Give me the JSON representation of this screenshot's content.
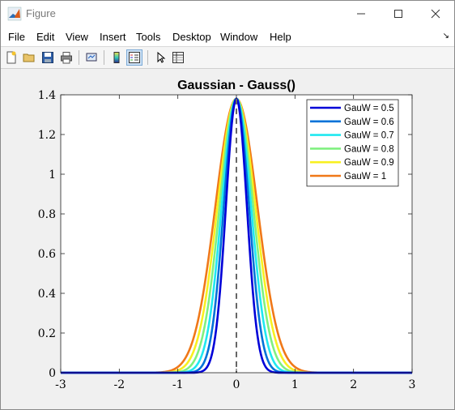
{
  "window": {
    "title": "Figure"
  },
  "menu": [
    "File",
    "Edit",
    "View",
    "Insert",
    "Tools",
    "Desktop",
    "Window",
    "Help"
  ],
  "chart_data": {
    "type": "line",
    "title": "Gaussian - Gauss()",
    "xlim": [
      -3,
      3
    ],
    "ylim": [
      0,
      1.4
    ],
    "xticks": [
      "-3",
      "-2",
      "-1",
      "0",
      "1",
      "2",
      "3"
    ],
    "yticks": [
      "0",
      "0.2",
      "0.4",
      "0.6",
      "0.8",
      "1",
      "1.2",
      "1.4"
    ],
    "peak": 1.38,
    "legend_position": "top-right",
    "series": [
      {
        "name": "GauW = 0.5",
        "width": 0.5,
        "color": "#0000d8"
      },
      {
        "name": "GauW = 0.6",
        "width": 0.6,
        "color": "#0072d8"
      },
      {
        "name": "GauW = 0.7",
        "width": 0.7,
        "color": "#20e8f0"
      },
      {
        "name": "GauW = 0.8",
        "width": 0.8,
        "color": "#80f080"
      },
      {
        "name": "GauW = 0.9",
        "width": 0.9,
        "color": "#f8f020"
      },
      {
        "name": "GauW = 1",
        "width": 1.0,
        "color": "#f07818"
      }
    ],
    "vline_x": 0,
    "grid": false
  }
}
